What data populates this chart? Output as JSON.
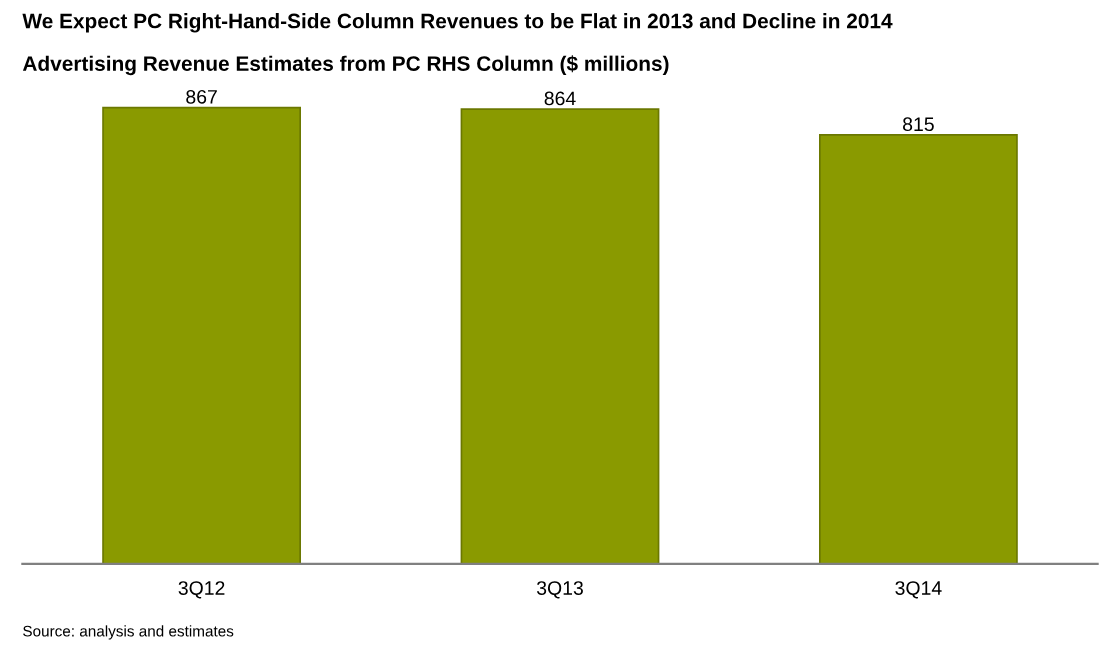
{
  "chart_data": {
    "type": "bar",
    "title": "We Expect PC Right-Hand-Side Column Revenues to be Flat in 2013 and Decline in 2014",
    "subtitle": "Advertising Revenue Estimates from PC RHS Column ($ millions)",
    "categories": [
      "3Q12",
      "3Q13",
      "3Q14"
    ],
    "values": [
      867,
      864,
      815
    ],
    "color": "#8a9a00",
    "data_labels": true,
    "grid": false,
    "legend": false,
    "annotations": [
      "Source: analysis and estimates"
    ]
  }
}
